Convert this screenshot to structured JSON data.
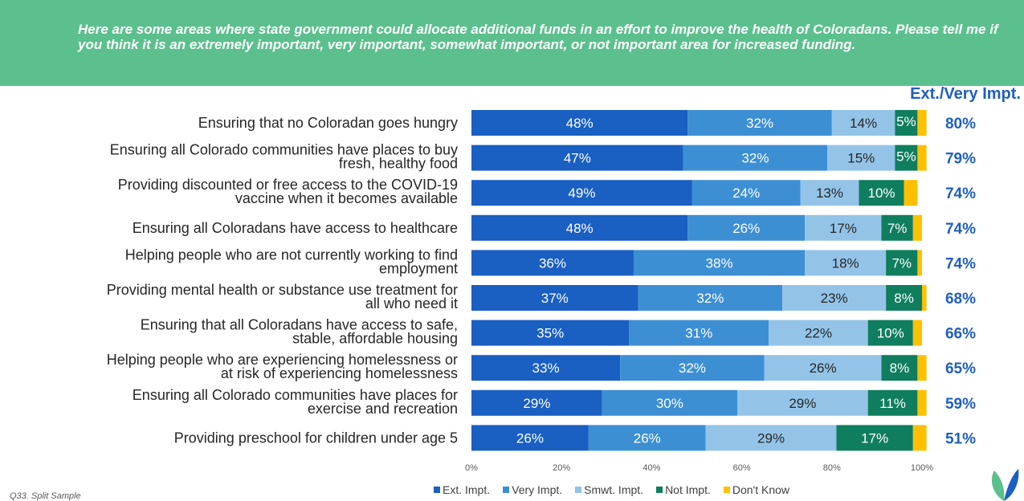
{
  "question": "Here are some areas where state government could allocate additional funds in an effort to improve the health of Coloradans. Please tell me if you think it is an extremely important, very important, somewhat important, or not important area for increased funding.",
  "summary_header": "Ext./Very Impt.",
  "footnote": "Q33. Split Sample",
  "chart_data": {
    "type": "bar",
    "orientation": "horizontal",
    "stacked": true,
    "xlim": [
      0,
      100
    ],
    "x_ticks": [
      "0%",
      "20%",
      "40%",
      "60%",
      "80%",
      "100%"
    ],
    "categories": [
      [
        "Ensuring that no Coloradan goes hungry"
      ],
      [
        "Ensuring all Colorado communities have places to buy",
        "fresh, healthy food"
      ],
      [
        "Providing discounted or free access to the COVID-19",
        "vaccine when it becomes available"
      ],
      [
        "Ensuring all Coloradans have access to healthcare"
      ],
      [
        "Helping people who are not currently working to find",
        "employment"
      ],
      [
        "Providing mental health or substance use treatment for",
        "all who need it"
      ],
      [
        "Ensuring that all Coloradans have access to safe,",
        "stable, affordable housing"
      ],
      [
        "Helping people who are experiencing homelessness or",
        "at risk of experiencing homelessness"
      ],
      [
        "Ensuring all Colorado communities have places for",
        "exercise and recreation"
      ],
      [
        "Providing preschool for children under age 5"
      ]
    ],
    "series": [
      {
        "name": "Ext. Impt.",
        "color": "#1a5fc2",
        "text_color": "#ffffff",
        "values": [
          48,
          47,
          49,
          48,
          36,
          37,
          35,
          33,
          29,
          26
        ]
      },
      {
        "name": "Very Impt.",
        "color": "#3d8fd4",
        "text_color": "#ffffff",
        "values": [
          32,
          32,
          24,
          26,
          38,
          32,
          31,
          32,
          30,
          26
        ]
      },
      {
        "name": "Smwt. Impt.",
        "color": "#93c4e8",
        "text_color": "#262626",
        "values": [
          14,
          15,
          13,
          17,
          18,
          23,
          22,
          26,
          29,
          29
        ]
      },
      {
        "name": "Not Impt.",
        "color": "#0f7e5e",
        "text_color": "#ffffff",
        "values": [
          5,
          5,
          10,
          7,
          7,
          8,
          10,
          8,
          11,
          17
        ]
      },
      {
        "name": "Don't Know",
        "color": "#ffc000",
        "text_color": "#262626",
        "values": [
          2,
          2,
          3,
          2,
          1,
          1,
          2,
          2,
          2,
          3
        ]
      }
    ],
    "summary": [
      "80%",
      "79%",
      "74%",
      "74%",
      "74%",
      "68%",
      "66%",
      "65%",
      "59%",
      "51%"
    ],
    "legend": "bottom"
  }
}
